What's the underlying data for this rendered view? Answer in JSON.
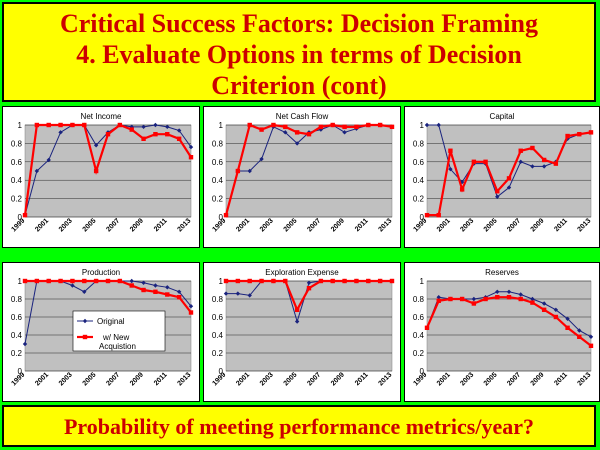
{
  "title": {
    "line1": "Critical Success Factors:  Decision Framing",
    "line2": "4. Evaluate Options in terms of Decision",
    "line3": "Criterion (cont)"
  },
  "footer": "Probability of meeting performance metrics/year?",
  "legend": {
    "original": "Original",
    "new": "w/ New Acquistion"
  },
  "colors": {
    "original": "#1a237e",
    "new": "#ff0000",
    "plot_bg": "#c0c0c0"
  },
  "chart_data": [
    {
      "type": "line",
      "title": "Net Income",
      "x": [
        1999,
        2000,
        2001,
        2002,
        2003,
        2004,
        2005,
        2006,
        2007,
        2008,
        2009,
        2010,
        2011,
        2012,
        2013
      ],
      "xticks": [
        "1999",
        "2001",
        "2003",
        "2005",
        "2007",
        "2009",
        "2011",
        "2013"
      ],
      "yticks": [
        "0",
        "0.2",
        "0.4",
        "0.6",
        "0.8",
        "1"
      ],
      "ylim": [
        0,
        1
      ],
      "series": [
        {
          "name": "Original",
          "values": [
            0.02,
            0.5,
            0.62,
            0.92,
            1.0,
            1.0,
            0.78,
            0.92,
            1.0,
            0.98,
            0.98,
            1.0,
            0.98,
            0.94,
            0.76
          ]
        },
        {
          "name": "w/ New Acquistion",
          "values": [
            0.02,
            1.0,
            1.0,
            1.0,
            1.0,
            1.0,
            0.5,
            0.9,
            1.0,
            0.95,
            0.85,
            0.9,
            0.9,
            0.85,
            0.65
          ]
        }
      ]
    },
    {
      "type": "line",
      "title": "Net Cash Flow",
      "x": [
        1999,
        2000,
        2001,
        2002,
        2003,
        2004,
        2005,
        2006,
        2007,
        2008,
        2009,
        2010,
        2011,
        2012,
        2013
      ],
      "xticks": [
        "1999",
        "2001",
        "2003",
        "2005",
        "2007",
        "2009",
        "2011",
        "2013"
      ],
      "yticks": [
        "0",
        "0.2",
        "0.4",
        "0.6",
        "0.8",
        "1"
      ],
      "ylim": [
        0,
        1
      ],
      "series": [
        {
          "name": "Original",
          "values": [
            0.02,
            0.5,
            0.5,
            0.63,
            0.98,
            0.92,
            0.8,
            0.92,
            0.95,
            1.0,
            0.92,
            0.96,
            1.0,
            1.0,
            0.98
          ]
        },
        {
          "name": "w/ New Acquistion",
          "values": [
            0.02,
            0.5,
            1.0,
            0.95,
            1.0,
            0.98,
            0.92,
            0.9,
            0.98,
            1.0,
            0.98,
            0.98,
            1.0,
            1.0,
            0.98
          ]
        }
      ]
    },
    {
      "type": "line",
      "title": "Capital",
      "x": [
        1999,
        2000,
        2001,
        2002,
        2003,
        2004,
        2005,
        2006,
        2007,
        2008,
        2009,
        2010,
        2011,
        2012,
        2013
      ],
      "xticks": [
        "1999",
        "2001",
        "2003",
        "2005",
        "2007",
        "2009",
        "2011",
        "2013"
      ],
      "yticks": [
        "0",
        "0.2",
        "0.4",
        "0.6",
        "0.8",
        "1"
      ],
      "ylim": [
        0,
        1
      ],
      "series": [
        {
          "name": "Original",
          "values": [
            1.0,
            1.0,
            0.52,
            0.38,
            0.58,
            0.58,
            0.22,
            0.32,
            0.6,
            0.55,
            0.55,
            0.6,
            0.85,
            0.9,
            0.92
          ]
        },
        {
          "name": "w/ New Acquistion",
          "values": [
            0.02,
            0.02,
            0.72,
            0.3,
            0.6,
            0.6,
            0.28,
            0.42,
            0.72,
            0.75,
            0.62,
            0.58,
            0.88,
            0.9,
            0.92
          ]
        }
      ]
    },
    {
      "type": "line",
      "title": "Production",
      "x": [
        1999,
        2000,
        2001,
        2002,
        2003,
        2004,
        2005,
        2006,
        2007,
        2008,
        2009,
        2010,
        2011,
        2012,
        2013
      ],
      "xticks": [
        "1999",
        "2001",
        "2003",
        "2005",
        "2007",
        "2009",
        "2011",
        "2013"
      ],
      "yticks": [
        "0",
        "0.2",
        "0.4",
        "0.6",
        "0.8",
        "1"
      ],
      "ylim": [
        0,
        1
      ],
      "legend": true,
      "series": [
        {
          "name": "Original",
          "values": [
            0.3,
            1.0,
            1.0,
            1.0,
            0.95,
            0.88,
            1.0,
            1.0,
            1.0,
            1.0,
            0.98,
            0.95,
            0.93,
            0.88,
            0.72
          ]
        },
        {
          "name": "w/ New Acquistion",
          "values": [
            1.0,
            1.0,
            1.0,
            1.0,
            1.0,
            1.0,
            1.0,
            1.0,
            1.0,
            0.95,
            0.9,
            0.88,
            0.85,
            0.82,
            0.65
          ]
        }
      ]
    },
    {
      "type": "line",
      "title": "Exploration Expense",
      "x": [
        1999,
        2000,
        2001,
        2002,
        2003,
        2004,
        2005,
        2006,
        2007,
        2008,
        2009,
        2010,
        2011,
        2012,
        2013
      ],
      "xticks": [
        "1999",
        "2001",
        "2003",
        "2005",
        "2007",
        "2009",
        "2011",
        "2013"
      ],
      "yticks": [
        "0",
        "0.2",
        "0.4",
        "0.6",
        "0.8",
        "1"
      ],
      "ylim": [
        0,
        1
      ],
      "series": [
        {
          "name": "Original",
          "values": [
            0.86,
            0.86,
            0.84,
            1.0,
            1.0,
            1.0,
            0.55,
            0.98,
            1.0,
            1.0,
            1.0,
            1.0,
            1.0,
            1.0,
            1.0
          ]
        },
        {
          "name": "w/ New Acquistion",
          "values": [
            1.0,
            1.0,
            1.0,
            1.0,
            1.0,
            1.0,
            0.68,
            0.92,
            1.0,
            1.0,
            1.0,
            1.0,
            1.0,
            1.0,
            1.0
          ]
        }
      ]
    },
    {
      "type": "line",
      "title": "Reserves",
      "x": [
        1999,
        2000,
        2001,
        2002,
        2003,
        2004,
        2005,
        2006,
        2007,
        2008,
        2009,
        2010,
        2011,
        2012,
        2013
      ],
      "xticks": [
        "1999",
        "2001",
        "2003",
        "2005",
        "2007",
        "2009",
        "2011",
        "2013"
      ],
      "yticks": [
        "0",
        "0.2",
        "0.4",
        "0.6",
        "0.8",
        "1"
      ],
      "ylim": [
        0,
        1
      ],
      "series": [
        {
          "name": "Original",
          "values": [
            0.48,
            0.82,
            0.8,
            0.8,
            0.8,
            0.82,
            0.88,
            0.88,
            0.85,
            0.8,
            0.75,
            0.68,
            0.58,
            0.45,
            0.38
          ]
        },
        {
          "name": "w/ New Acquistion",
          "values": [
            0.48,
            0.78,
            0.8,
            0.8,
            0.75,
            0.8,
            0.82,
            0.82,
            0.8,
            0.76,
            0.68,
            0.6,
            0.48,
            0.38,
            0.28
          ]
        }
      ]
    }
  ]
}
